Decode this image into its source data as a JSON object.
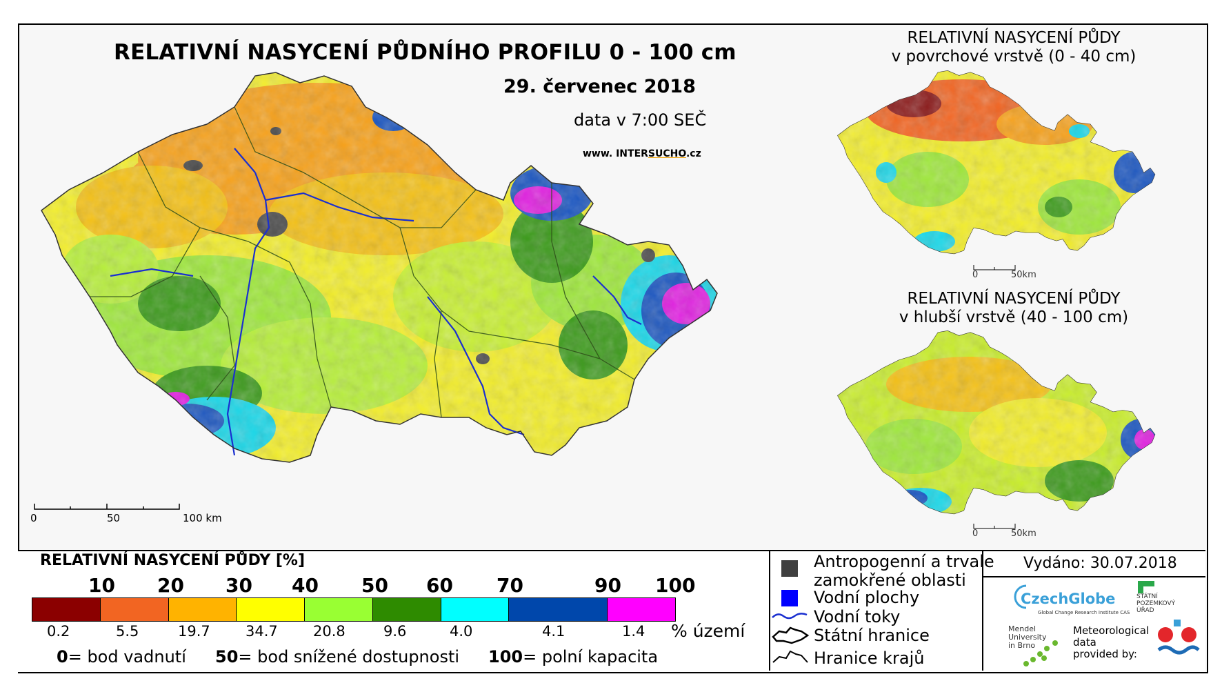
{
  "title": "RELATIVNÍ NASYCENÍ PŮDNÍHO PROFILU 0 - 100 cm",
  "date": "29. červenec 2018",
  "time": "data v 7:00 SEČ",
  "website": {
    "prefix": "www. INTER",
    "highlight": "SUCHO",
    "suffix": ".cz"
  },
  "main_scale": {
    "labels": [
      "0",
      "50",
      "100 km"
    ]
  },
  "insets": [
    {
      "title_line1": "RELATIVNÍ NASYCENÍ PŮDY",
      "title_line2": "v povrchové vrstvě (0 - 40 cm)",
      "scale_labels": [
        "0",
        "50km"
      ]
    },
    {
      "title_line1": "RELATIVNÍ NASYCENÍ PŮDY",
      "title_line2": "v hlubší vrstvě (40 - 100 cm)",
      "scale_labels": [
        "0",
        "50km"
      ]
    }
  ],
  "legend": {
    "title": "RELATIVNÍ NASYCENÍ PŮDY [%]",
    "thresholds": [
      "10",
      "20",
      "30",
      "40",
      "50",
      "60",
      "70",
      "90",
      "100"
    ],
    "colors": [
      "#8b0000",
      "#f26522",
      "#ffb300",
      "#ffff00",
      "#99ff33",
      "#2e8b00",
      "#00ffff",
      "#0047ab",
      "#ff00ff"
    ],
    "percent_area": [
      "0.2",
      "5.5",
      "19.7",
      "34.7",
      "20.8",
      "9.6",
      "4.0",
      "4.1",
      "1.4"
    ],
    "percent_label": "% území",
    "definitions": [
      {
        "value": "0",
        "text": "= bod vadnutí"
      },
      {
        "value": "50",
        "text": "= bod snížené dostupnosti"
      },
      {
        "value": "100",
        "text": "= polní kapacita"
      }
    ]
  },
  "symbols": [
    {
      "icon": "dark-gray-square",
      "line1": "Antropogenní a trvale",
      "line2": "zamokřené oblasti"
    },
    {
      "icon": "blue-square",
      "line1": "Vodní plochy"
    },
    {
      "icon": "blue-river-line",
      "line1": "Vodní toky"
    },
    {
      "icon": "state-border-outline",
      "line1": "Státní hranice"
    },
    {
      "icon": "region-border-outline",
      "line1": "Hranice krajů"
    }
  ],
  "issued": "Vydáno: 30.07.2018",
  "logos": {
    "czechglobe": "CzechGlobe",
    "czechglobe_sub": "Global Change Research Institute CAS",
    "spu": [
      "STÁTNÍ",
      "POZEMKOVÝ",
      "ÚŘAD"
    ],
    "mendel": [
      "Mendel",
      "University",
      "in Brno"
    ],
    "met": [
      "Meteorological",
      "data",
      "provided by:"
    ]
  }
}
